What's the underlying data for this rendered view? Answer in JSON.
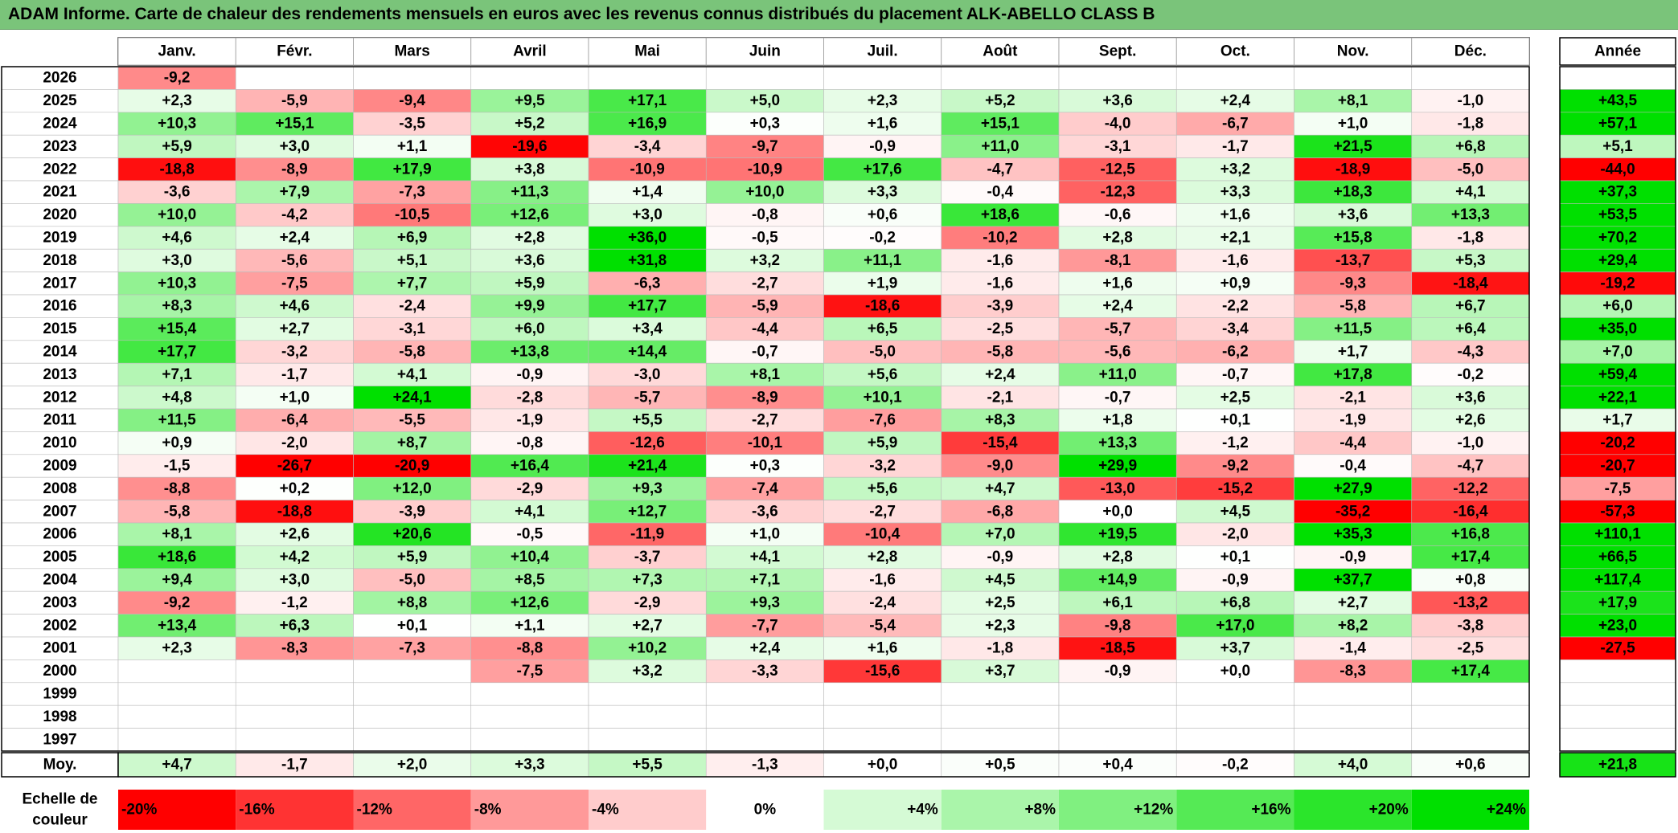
{
  "title": "ADAM Informe. Carte de chaleur des rendements mensuels en euros avec les revenus connus distribués du placement ALK-ABELLO CLASS B",
  "chart_data": {
    "type": "heatmap",
    "months": [
      "Janv.",
      "Févr.",
      "Mars",
      "Avril",
      "Mai",
      "Juin",
      "Juil.",
      "Août",
      "Sept.",
      "Oct.",
      "Nov.",
      "Déc."
    ],
    "annual_header": "Année",
    "rows": [
      {
        "year": "2026",
        "values": [
          "-9,2",
          "",
          "",
          "",
          "",
          "",
          "",
          "",
          "",
          "",
          "",
          ""
        ],
        "annual": ""
      },
      {
        "year": "2025",
        "values": [
          "+2,3",
          "-5,9",
          "-9,4",
          "+9,5",
          "+17,1",
          "+5,0",
          "+2,3",
          "+5,2",
          "+3,6",
          "+2,4",
          "+8,1",
          "-1,0"
        ],
        "annual": "+43,5"
      },
      {
        "year": "2024",
        "values": [
          "+10,3",
          "+15,1",
          "-3,5",
          "+5,2",
          "+16,9",
          "+0,3",
          "+1,6",
          "+15,1",
          "-4,0",
          "-6,7",
          "+1,0",
          "-1,8"
        ],
        "annual": "+57,1"
      },
      {
        "year": "2023",
        "values": [
          "+5,9",
          "+3,0",
          "+1,1",
          "-19,6",
          "-3,4",
          "-9,7",
          "-0,9",
          "+11,0",
          "-3,1",
          "-1,7",
          "+21,5",
          "+6,8"
        ],
        "annual": "+5,1"
      },
      {
        "year": "2022",
        "values": [
          "-18,8",
          "-8,9",
          "+17,9",
          "+3,8",
          "-10,9",
          "-10,9",
          "+17,6",
          "-4,7",
          "-12,5",
          "+3,2",
          "-18,9",
          "-5,0"
        ],
        "annual": "-44,0"
      },
      {
        "year": "2021",
        "values": [
          "-3,6",
          "+7,9",
          "-7,3",
          "+11,3",
          "+1,4",
          "+10,0",
          "+3,3",
          "-0,4",
          "-12,3",
          "+3,3",
          "+18,3",
          "+4,1"
        ],
        "annual": "+37,3"
      },
      {
        "year": "2020",
        "values": [
          "+10,0",
          "-4,2",
          "-10,5",
          "+12,6",
          "+3,0",
          "-0,8",
          "+0,6",
          "+18,6",
          "-0,6",
          "+1,6",
          "+3,6",
          "+13,3"
        ],
        "annual": "+53,5"
      },
      {
        "year": "2019",
        "values": [
          "+4,6",
          "+2,4",
          "+6,9",
          "+2,8",
          "+36,0",
          "-0,5",
          "-0,2",
          "-10,2",
          "+2,8",
          "+2,1",
          "+15,8",
          "-1,8"
        ],
        "annual": "+70,2"
      },
      {
        "year": "2018",
        "values": [
          "+3,0",
          "-5,6",
          "+5,1",
          "+3,6",
          "+31,8",
          "+3,2",
          "+11,1",
          "-1,6",
          "-8,1",
          "-1,6",
          "-13,7",
          "+5,3"
        ],
        "annual": "+29,4"
      },
      {
        "year": "2017",
        "values": [
          "+10,3",
          "-7,5",
          "+7,7",
          "+5,9",
          "-6,3",
          "-2,7",
          "+1,9",
          "-1,6",
          "+1,6",
          "+0,9",
          "-9,3",
          "-18,4"
        ],
        "annual": "-19,2"
      },
      {
        "year": "2016",
        "values": [
          "+8,3",
          "+4,6",
          "-2,4",
          "+9,9",
          "+17,7",
          "-5,9",
          "-18,6",
          "-3,9",
          "+2,4",
          "-2,2",
          "-5,8",
          "+6,7"
        ],
        "annual": "+6,0"
      },
      {
        "year": "2015",
        "values": [
          "+15,4",
          "+2,7",
          "-3,1",
          "+6,0",
          "+3,4",
          "-4,4",
          "+6,5",
          "-2,5",
          "-5,7",
          "-3,4",
          "+11,5",
          "+6,4"
        ],
        "annual": "+35,0"
      },
      {
        "year": "2014",
        "values": [
          "+17,7",
          "-3,2",
          "-5,8",
          "+13,8",
          "+14,4",
          "-0,7",
          "-5,0",
          "-5,8",
          "-5,6",
          "-6,2",
          "+1,7",
          "-4,3"
        ],
        "annual": "+7,0"
      },
      {
        "year": "2013",
        "values": [
          "+7,1",
          "-1,7",
          "+4,1",
          "-0,9",
          "-3,0",
          "+8,1",
          "+5,6",
          "+2,4",
          "+11,0",
          "-0,7",
          "+17,8",
          "-0,2"
        ],
        "annual": "+59,4"
      },
      {
        "year": "2012",
        "values": [
          "+4,8",
          "+1,0",
          "+24,1",
          "-2,8",
          "-5,7",
          "-8,9",
          "+10,1",
          "-2,1",
          "-0,7",
          "+2,5",
          "-2,1",
          "+3,6"
        ],
        "annual": "+22,1"
      },
      {
        "year": "2011",
        "values": [
          "+11,5",
          "-6,4",
          "-5,5",
          "-1,9",
          "+5,5",
          "-2,7",
          "-7,6",
          "+8,3",
          "+1,8",
          "+0,1",
          "-1,9",
          "+2,6"
        ],
        "annual": "+1,7"
      },
      {
        "year": "2010",
        "values": [
          "+0,9",
          "-2,0",
          "+8,7",
          "-0,8",
          "-12,6",
          "-10,1",
          "+5,9",
          "-15,4",
          "+13,3",
          "-1,2",
          "-4,4",
          "-1,0"
        ],
        "annual": "-20,2"
      },
      {
        "year": "2009",
        "values": [
          "-1,5",
          "-26,7",
          "-20,9",
          "+16,4",
          "+21,4",
          "+0,3",
          "-3,2",
          "-9,0",
          "+29,9",
          "-9,2",
          "-0,4",
          "-4,7"
        ],
        "annual": "-20,7"
      },
      {
        "year": "2008",
        "values": [
          "-8,8",
          "+0,2",
          "+12,0",
          "-2,9",
          "+9,3",
          "-7,4",
          "+5,6",
          "+4,7",
          "-13,0",
          "-15,2",
          "+27,9",
          "-12,2"
        ],
        "annual": "-7,5"
      },
      {
        "year": "2007",
        "values": [
          "-5,8",
          "-18,8",
          "-3,9",
          "+4,1",
          "+12,7",
          "-3,6",
          "-2,7",
          "-6,8",
          "+0,0",
          "+4,5",
          "-35,2",
          "-16,4"
        ],
        "annual": "-57,3"
      },
      {
        "year": "2006",
        "values": [
          "+8,1",
          "+2,6",
          "+20,6",
          "-0,5",
          "-11,9",
          "+1,0",
          "-10,4",
          "+7,0",
          "+19,5",
          "-2,0",
          "+35,3",
          "+16,8"
        ],
        "annual": "+110,1"
      },
      {
        "year": "2005",
        "values": [
          "+18,6",
          "+4,2",
          "+5,9",
          "+10,4",
          "-3,7",
          "+4,1",
          "+2,8",
          "-0,9",
          "+2,8",
          "+0,1",
          "-0,9",
          "+17,4"
        ],
        "annual": "+66,5"
      },
      {
        "year": "2004",
        "values": [
          "+9,4",
          "+3,0",
          "-5,0",
          "+8,5",
          "+7,3",
          "+7,1",
          "-1,6",
          "+4,5",
          "+14,9",
          "-0,9",
          "+37,7",
          "+0,8"
        ],
        "annual": "+117,4"
      },
      {
        "year": "2003",
        "values": [
          "-9,2",
          "-1,2",
          "+8,8",
          "+12,6",
          "-2,9",
          "+9,3",
          "-2,4",
          "+2,5",
          "+6,1",
          "+6,8",
          "+2,7",
          "-13,2"
        ],
        "annual": "+17,9"
      },
      {
        "year": "2002",
        "values": [
          "+13,4",
          "+6,3",
          "+0,1",
          "+1,1",
          "+2,7",
          "-7,7",
          "-5,4",
          "+2,3",
          "-9,8",
          "+17,0",
          "+8,2",
          "-3,8"
        ],
        "annual": "+23,0"
      },
      {
        "year": "2001",
        "values": [
          "+2,3",
          "-8,3",
          "-7,3",
          "-8,8",
          "+10,2",
          "+2,4",
          "+1,6",
          "-1,8",
          "-18,5",
          "+3,7",
          "-1,4",
          "-2,5"
        ],
        "annual": "-27,5"
      },
      {
        "year": "2000",
        "values": [
          "",
          "",
          "",
          "-7,5",
          "+3,2",
          "-3,3",
          "-15,6",
          "+3,7",
          "-0,9",
          "+0,0",
          "-8,3",
          "+17,4"
        ],
        "annual": ""
      },
      {
        "year": "1999",
        "values": [
          "",
          "",
          "",
          "",
          "",
          "",
          "",
          "",
          "",
          "",
          "",
          ""
        ],
        "annual": ""
      },
      {
        "year": "1998",
        "values": [
          "",
          "",
          "",
          "",
          "",
          "",
          "",
          "",
          "",
          "",
          "",
          ""
        ],
        "annual": ""
      },
      {
        "year": "1997",
        "values": [
          "",
          "",
          "",
          "",
          "",
          "",
          "",
          "",
          "",
          "",
          "",
          ""
        ],
        "annual": ""
      }
    ],
    "average": {
      "label": "Moy.",
      "values": [
        "+4,7",
        "-1,7",
        "+2,0",
        "+3,3",
        "+5,5",
        "-1,3",
        "+0,0",
        "+0,5",
        "+0,4",
        "-0,2",
        "+4,0",
        "+0,6"
      ],
      "annual": "+21,8"
    },
    "scale": {
      "label": "Echelle de couleur",
      "values": [
        -20,
        -16,
        -12,
        -8,
        -4,
        0,
        4,
        8,
        12,
        16,
        20,
        24
      ],
      "labels": [
        "-20%",
        "-16%",
        "-12%",
        "-8%",
        "-4%",
        "0%",
        "+4%",
        "+8%",
        "+12%",
        "+16%",
        "+20%",
        "+24%"
      ]
    },
    "colors": {
      "negative_max": "#ff0000",
      "positive_max": "#00e000",
      "neutral": "#ffffff",
      "title_bar": "#7ac47a"
    }
  }
}
